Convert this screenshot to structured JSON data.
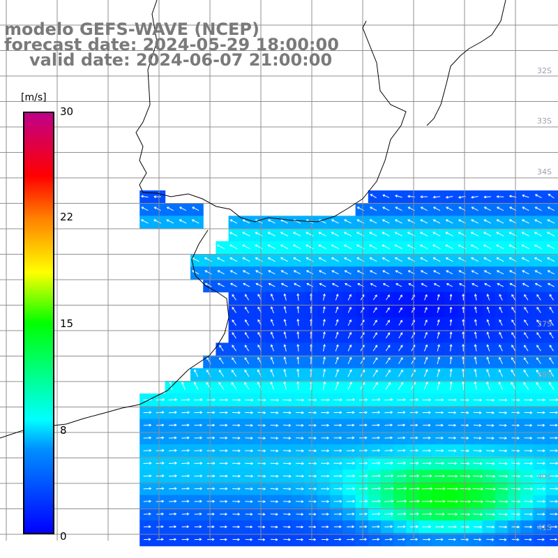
{
  "title": {
    "line1": "modelo GEFS-WAVE (NCEP)",
    "line2": "forecast date: 2024-05-29 18:00:00",
    "line3": "valid date: 2024-06-07 21:00:00"
  },
  "legend": {
    "unit": "[m/s]",
    "ticks": [
      "30",
      "22",
      "15",
      "8",
      "0"
    ],
    "tick_values": [
      30,
      22,
      15,
      8,
      0
    ],
    "range": [
      0,
      30
    ],
    "colors": [
      "#0000ff",
      "#00aaff",
      "#00ffff",
      "#00ff00",
      "#ffff00",
      "#ff8000",
      "#ff0000",
      "#c0008a"
    ]
  },
  "latitude_labels": [
    "32S",
    "33S",
    "34S",
    "37S",
    "38S",
    "40S",
    "41S"
  ],
  "colors": {
    "land": "#ffffff",
    "coast": "#000000",
    "grid": "#909090",
    "arrow": "#ffffff",
    "title": "#7a7a7a"
  }
}
